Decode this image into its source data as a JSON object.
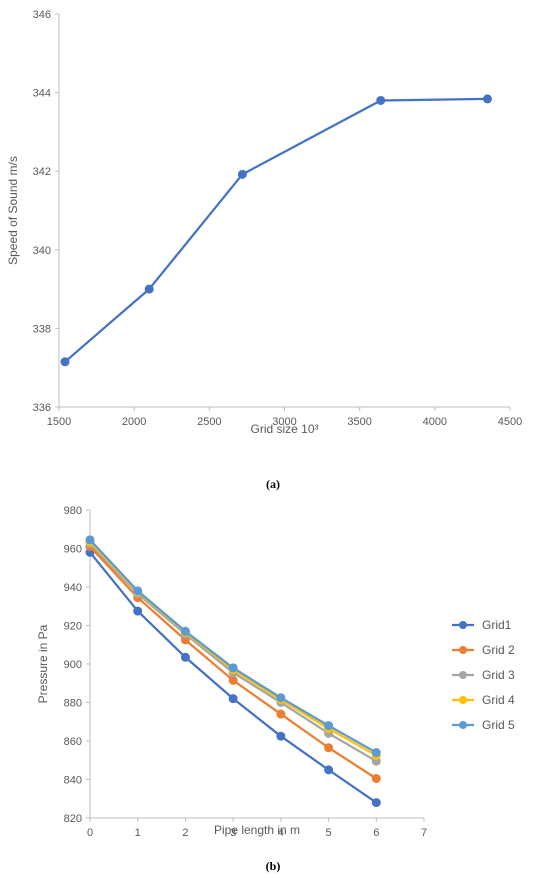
{
  "chart_data": [
    {
      "type": "line",
      "caption": "(a)",
      "xlabel": "Grid size 10³",
      "ylabel": "Speed of Sound m/s",
      "xlim": [
        1500,
        4500
      ],
      "ylim": [
        336,
        346
      ],
      "xticks": [
        1500,
        2000,
        2500,
        3000,
        3500,
        4000,
        4500
      ],
      "yticks": [
        336,
        338,
        340,
        342,
        344,
        346
      ],
      "grid": false,
      "series": [
        {
          "color": "#4472C4",
          "x": [
            1540,
            2100,
            2720,
            3640,
            4350
          ],
          "y": [
            337.15,
            339.0,
            341.92,
            343.8,
            343.84
          ]
        }
      ]
    },
    {
      "type": "line",
      "caption": "(b)",
      "xlabel": "Pipe length in m",
      "ylabel": "Pressure in Pa",
      "xlim": [
        0,
        7
      ],
      "ylim": [
        820,
        980
      ],
      "xticks": [
        0,
        1,
        2,
        3,
        4,
        5,
        6,
        7
      ],
      "yticks": [
        820,
        840,
        860,
        880,
        900,
        920,
        940,
        960,
        980
      ],
      "grid": false,
      "legend": "right",
      "x": [
        0,
        1,
        2,
        3,
        4,
        5,
        6
      ],
      "series": [
        {
          "name": "Grid1",
          "color": "#4472C4",
          "values": [
            958,
            927.5,
            903.5,
            882,
            862.5,
            845,
            828
          ]
        },
        {
          "name": "Grid 2",
          "color": "#ED7D31",
          "values": [
            961,
            934.5,
            912.5,
            891.5,
            874,
            856.5,
            840.5
          ]
        },
        {
          "name": "Grid 3",
          "color": "#A5A5A5",
          "values": [
            962.5,
            936.5,
            915.5,
            895.5,
            880,
            864,
            849.5
          ]
        },
        {
          "name": "Grid 4",
          "color": "#FFC000",
          "values": [
            963.5,
            937.5,
            916.5,
            897,
            881.5,
            866.5,
            852.5
          ]
        },
        {
          "name": "Grid 5",
          "color": "#5B9BD5",
          "values": [
            964.5,
            938,
            917,
            898,
            882.5,
            868,
            854
          ]
        }
      ]
    }
  ]
}
